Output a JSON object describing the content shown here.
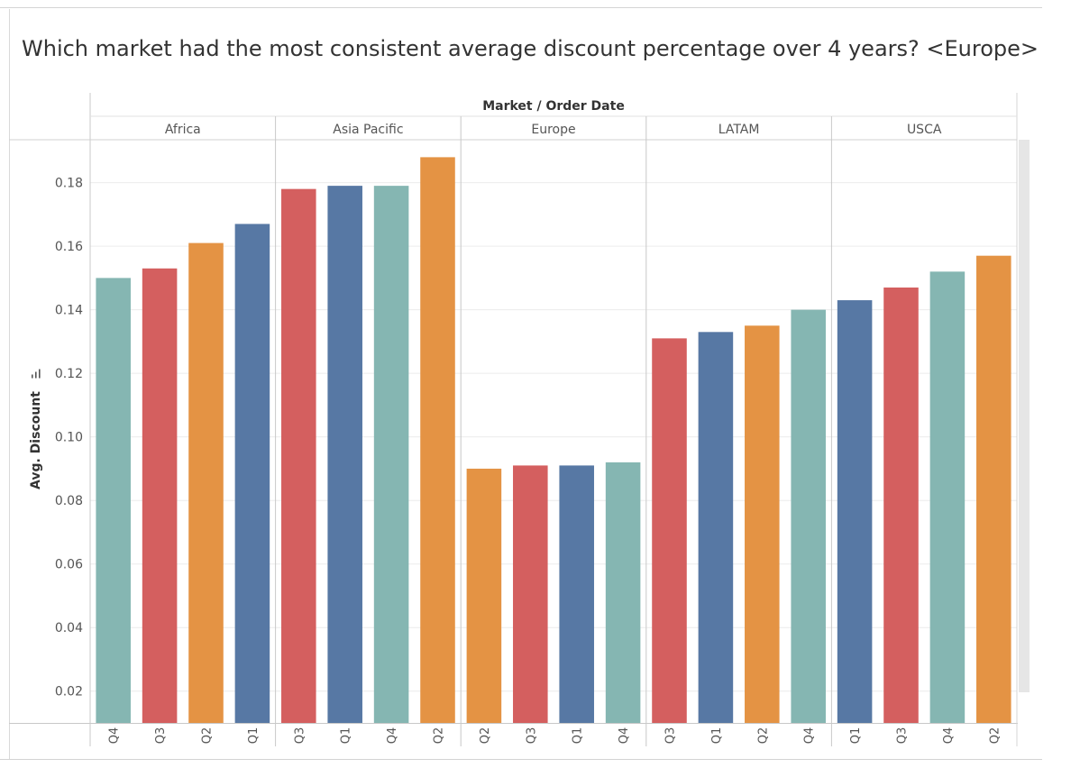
{
  "title": "Which market had the most consistent average discount percentage over 4 years? <Europe>",
  "colors": {
    "teal": "#85B6B2",
    "red": "#D45F5F",
    "orange": "#E49344",
    "blue": "#5778A4"
  },
  "chart_data": {
    "type": "bar",
    "column_header": "Market / Order Date",
    "ylabel": "Avg. Discount",
    "ylabel_icon": "sort-icon",
    "ylim": [
      0.01,
      0.1935
    ],
    "yticks": [
      "0.02",
      "0.04",
      "0.06",
      "0.08",
      "0.10",
      "0.12",
      "0.14",
      "0.16",
      "0.18"
    ],
    "grid": true,
    "markets": [
      {
        "name": "Africa",
        "bars": [
          {
            "label": "Q4",
            "value": 0.15,
            "color": "teal"
          },
          {
            "label": "Q3",
            "value": 0.153,
            "color": "red"
          },
          {
            "label": "Q2",
            "value": 0.161,
            "color": "orange"
          },
          {
            "label": "Q1",
            "value": 0.167,
            "color": "blue"
          }
        ]
      },
      {
        "name": "Asia Pacific",
        "bars": [
          {
            "label": "Q3",
            "value": 0.178,
            "color": "red"
          },
          {
            "label": "Q1",
            "value": 0.179,
            "color": "blue"
          },
          {
            "label": "Q4",
            "value": 0.179,
            "color": "teal"
          },
          {
            "label": "Q2",
            "value": 0.188,
            "color": "orange"
          }
        ]
      },
      {
        "name": "Europe",
        "bars": [
          {
            "label": "Q2",
            "value": 0.09,
            "color": "orange"
          },
          {
            "label": "Q3",
            "value": 0.091,
            "color": "red"
          },
          {
            "label": "Q1",
            "value": 0.091,
            "color": "blue"
          },
          {
            "label": "Q4",
            "value": 0.092,
            "color": "teal"
          }
        ]
      },
      {
        "name": "LATAM",
        "bars": [
          {
            "label": "Q3",
            "value": 0.131,
            "color": "red"
          },
          {
            "label": "Q1",
            "value": 0.133,
            "color": "blue"
          },
          {
            "label": "Q2",
            "value": 0.135,
            "color": "orange"
          },
          {
            "label": "Q4",
            "value": 0.14,
            "color": "teal"
          }
        ]
      },
      {
        "name": "USCA",
        "bars": [
          {
            "label": "Q1",
            "value": 0.143,
            "color": "blue"
          },
          {
            "label": "Q3",
            "value": 0.147,
            "color": "red"
          },
          {
            "label": "Q4",
            "value": 0.152,
            "color": "teal"
          },
          {
            "label": "Q2",
            "value": 0.157,
            "color": "orange"
          }
        ]
      }
    ]
  }
}
